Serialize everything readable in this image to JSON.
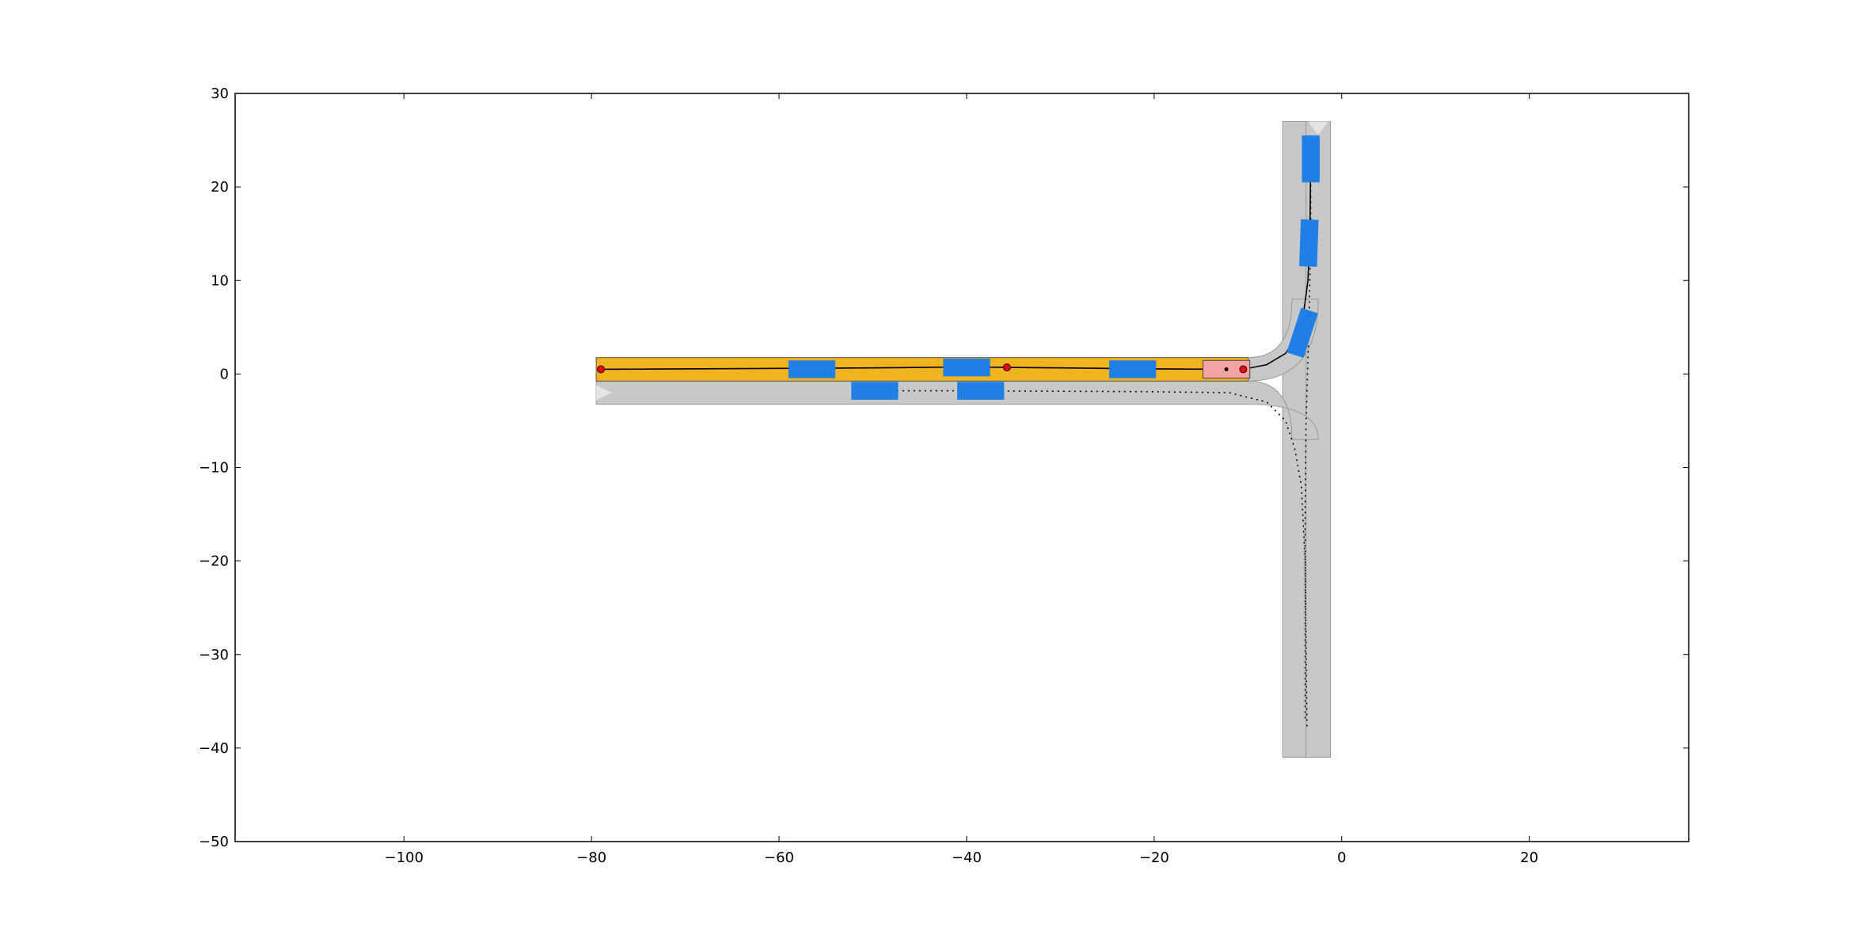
{
  "chart_data": {
    "type": "scatter",
    "title": "",
    "xlabel": "",
    "ylabel": "",
    "xlim": [
      -118,
      37
    ],
    "ylim": [
      -50,
      30
    ],
    "grid": false,
    "x_ticks": [
      -100,
      -80,
      -60,
      -40,
      -20,
      0,
      20
    ],
    "y_ticks": [
      -50,
      -40,
      -30,
      -20,
      -10,
      0,
      10,
      20,
      30
    ],
    "x_tick_labels": [
      "−100",
      "−80",
      "−60",
      "−40",
      "−20",
      "0",
      "20"
    ],
    "y_tick_labels": [
      "−50",
      "−40",
      "−30",
      "−20",
      "−10",
      "0",
      "10",
      "20",
      "30"
    ],
    "colors": {
      "road": "#c8c8c8",
      "road_edge": "#8c8c8c",
      "highlight_lane": "#f0b41e",
      "vehicle": "#1e7fe6",
      "ego_vehicle": "#f4a3a3",
      "waypoint": "#e60000",
      "path": "#000000"
    },
    "lanes": {
      "west_upper": {
        "x": [
          -79.5,
          0
        ],
        "y_center": 0.5
      },
      "west_lower": {
        "x": [
          -79.5,
          0
        ],
        "y_center": -2.0
      },
      "vertical_right": {
        "y": [
          -41,
          27
        ],
        "x_center": -2.5
      },
      "vertical_left": {
        "y": [
          -41,
          27
        ],
        "x_center": -5.0
      }
    },
    "vehicles": [
      {
        "x": -56.5,
        "y": 0.5,
        "heading_deg": 0
      },
      {
        "x": -40.0,
        "y": 0.7,
        "heading_deg": 0
      },
      {
        "x": -22.3,
        "y": 0.5,
        "heading_deg": 0
      },
      {
        "x": -49.8,
        "y": -1.8,
        "heading_deg": 0
      },
      {
        "x": -38.5,
        "y": -1.8,
        "heading_deg": 0
      },
      {
        "x": -4.2,
        "y": 4.4,
        "heading_deg": 72
      },
      {
        "x": -3.5,
        "y": 14.0,
        "heading_deg": 88
      },
      {
        "x": -3.3,
        "y": 23.0,
        "heading_deg": 90
      }
    ],
    "ego_vehicle": {
      "x": -12.3,
      "y": 0.5,
      "heading_deg": 0
    },
    "waypoints": [
      {
        "x": -79.0,
        "y": 0.5
      },
      {
        "x": -35.7,
        "y": 0.7
      },
      {
        "x": -10.5,
        "y": 0.5
      }
    ],
    "ego_path": {
      "x": [
        -79,
        -70,
        -60,
        -50,
        -40,
        -35.7,
        -30,
        -20,
        -12.3,
        -10.5,
        -8,
        -6,
        -4.8,
        -4.0,
        -3.6,
        -3.4,
        -3.3
      ],
      "y": [
        0.5,
        0.55,
        0.6,
        0.65,
        0.75,
        0.7,
        0.65,
        0.55,
        0.5,
        0.5,
        1.0,
        2.2,
        4.0,
        7.0,
        10.0,
        15.0,
        23.0
      ]
    },
    "dotted_path_lower": {
      "x": [
        -49.8,
        -40,
        -30,
        -20,
        -12,
        -8,
        -6,
        -5,
        -4.3,
        -3.9,
        -3.8,
        -3.7
      ],
      "y": [
        -1.8,
        -1.8,
        -1.85,
        -1.9,
        -2.0,
        -3.0,
        -5.0,
        -8.0,
        -12.0,
        -20.0,
        -30.0,
        -38.0
      ]
    },
    "dotted_path_vertical": {
      "x": [
        -3.3,
        -3.3,
        -3.5,
        -3.8,
        -3.9,
        -3.9,
        -3.9
      ],
      "y": [
        22.0,
        15.0,
        5.0,
        -5.0,
        -15.0,
        -25.0,
        -37.0
      ]
    }
  }
}
